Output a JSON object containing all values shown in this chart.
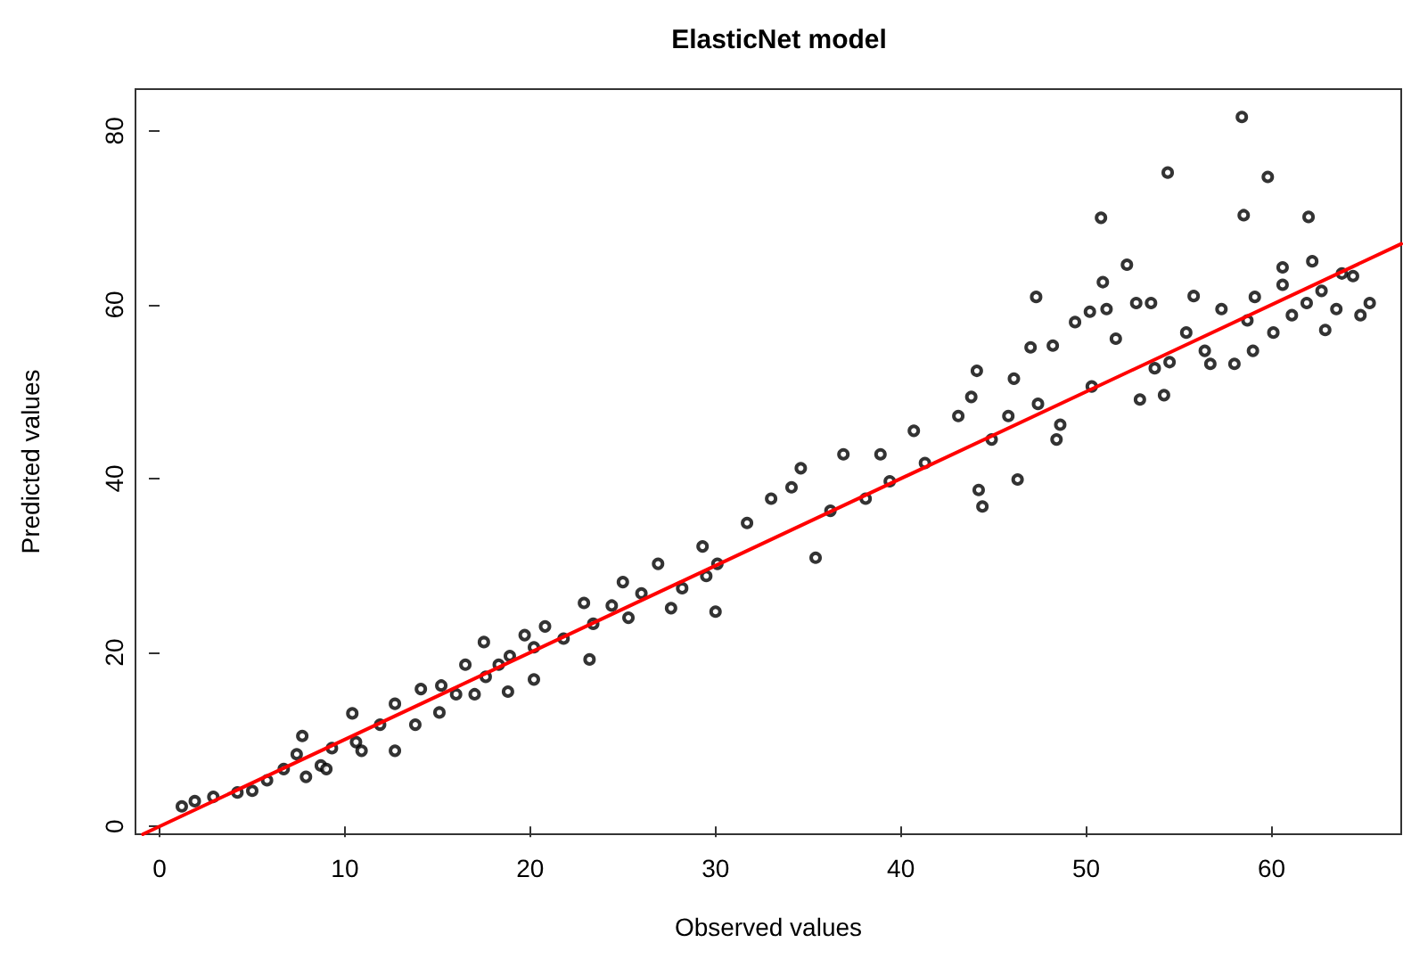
{
  "chart_data": {
    "type": "scatter",
    "title": "ElasticNet model",
    "xlabel": "Observed values",
    "ylabel": "Predicted values",
    "xlim": [
      -1.3,
      67
    ],
    "ylim": [
      -0.9,
      84.8
    ],
    "xticks": [
      0,
      10,
      20,
      30,
      40,
      50,
      60
    ],
    "yticks": [
      0,
      20,
      40,
      60,
      80
    ],
    "grid": false,
    "series": [
      {
        "marker": "circle",
        "color": "#000000",
        "x": [
          1.2,
          1.9,
          2.9,
          4.2,
          5.0,
          5.8,
          6.7,
          7.4,
          7.7,
          7.9,
          8.7,
          9.3,
          9.0,
          10.4,
          10.6,
          10.9,
          11.9,
          12.7,
          12.7,
          13.8,
          14.1,
          15.1,
          15.2,
          16.0,
          16.5,
          17.0,
          17.5,
          17.6,
          18.3,
          18.8,
          18.9,
          19.7,
          20.2,
          20.2,
          20.8,
          21.8,
          22.9,
          23.2,
          23.4,
          24.4,
          25.0,
          25.3,
          26.0,
          26.9,
          27.6,
          28.2,
          29.3,
          29.5,
          30.0,
          30.1,
          31.7,
          33.0,
          34.1,
          34.6,
          35.4,
          36.2,
          36.9,
          38.1,
          38.9,
          39.4,
          40.7,
          41.3,
          43.1,
          43.8,
          44.1,
          44.2,
          44.4,
          44.9,
          45.8,
          46.1,
          46.3,
          47.0,
          47.3,
          47.4,
          48.2,
          48.4,
          48.6,
          49.4,
          50.2,
          50.3,
          50.8,
          50.9,
          51.1,
          51.6,
          52.2,
          52.7,
          52.9,
          53.5,
          53.7,
          54.2,
          54.4,
          54.5,
          55.4,
          55.8,
          56.4,
          56.7,
          57.3,
          58.0,
          58.4,
          58.5,
          58.7,
          59.0,
          59.1,
          59.8,
          60.1,
          60.6,
          60.6,
          61.1,
          61.9,
          62.0,
          62.2,
          62.7,
          62.9,
          63.5,
          63.8,
          64.4,
          64.8,
          65.3
        ],
        "values": [
          2.3,
          2.9,
          3.4,
          3.9,
          4.1,
          5.3,
          6.6,
          8.3,
          10.4,
          5.7,
          7.0,
          9.0,
          6.6,
          13.0,
          9.7,
          8.7,
          11.7,
          8.7,
          14.1,
          11.7,
          15.8,
          13.1,
          16.2,
          15.2,
          18.6,
          15.2,
          21.2,
          17.2,
          18.6,
          15.5,
          19.6,
          22.0,
          16.9,
          20.6,
          23.0,
          21.6,
          25.7,
          19.2,
          23.3,
          25.4,
          28.1,
          24.0,
          26.8,
          30.2,
          25.1,
          27.4,
          32.2,
          28.8,
          24.7,
          30.2,
          34.9,
          37.7,
          39.0,
          41.2,
          30.9,
          36.3,
          42.8,
          37.7,
          42.8,
          39.7,
          45.5,
          41.8,
          47.2,
          49.4,
          52.4,
          38.7,
          36.8,
          44.5,
          47.2,
          51.5,
          39.9,
          55.1,
          60.9,
          48.6,
          55.3,
          44.5,
          46.2,
          58.0,
          59.2,
          50.6,
          70.0,
          62.6,
          59.5,
          56.1,
          64.6,
          60.2,
          49.1,
          60.2,
          52.7,
          49.6,
          75.2,
          53.4,
          56.8,
          61.0,
          54.7,
          53.2,
          59.5,
          53.2,
          81.6,
          70.3,
          58.2,
          54.7,
          60.9,
          74.7,
          56.8,
          64.3,
          62.3,
          58.8,
          60.2,
          70.1,
          65.0,
          61.6,
          57.1,
          59.5,
          63.6,
          63.3,
          58.8,
          60.2
        ]
      },
      {
        "type": "line",
        "color": "#ff0000",
        "x": [
          -0.9,
          67
        ],
        "values": [
          -0.9,
          67
        ]
      }
    ]
  }
}
